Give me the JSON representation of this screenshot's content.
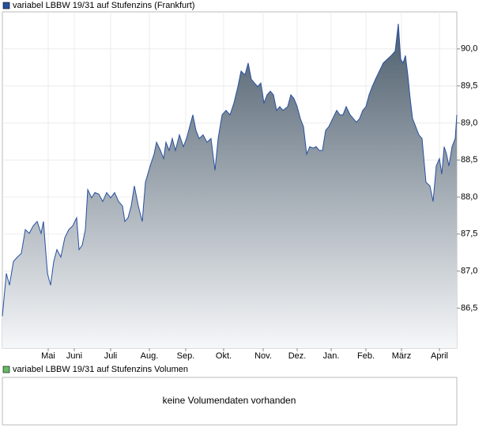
{
  "chart_data": {
    "type": "area",
    "title": "variabel LBBW 19/31 auf Stufenzins (Frankfurt)",
    "color": "#2850a0",
    "x": [
      0,
      5,
      9,
      14,
      19,
      24,
      29,
      34,
      39,
      44,
      49,
      52,
      57,
      61,
      65,
      69,
      74,
      79,
      84,
      89,
      94,
      97,
      101,
      105,
      108,
      113,
      117,
      122,
      127,
      132,
      137,
      142,
      147,
      152,
      155,
      159,
      163,
      167,
      172,
      177,
      181,
      187,
      192,
      195,
      200,
      204,
      207,
      211,
      215,
      219,
      224,
      229,
      233,
      237,
      241,
      245,
      249,
      254,
      259,
      264,
      269,
      273,
      278,
      283,
      288,
      293,
      298,
      302,
      307,
      311,
      315,
      319,
      323,
      327,
      331,
      335,
      339,
      343,
      347,
      351,
      355,
      361,
      365,
      369,
      373,
      377,
      381,
      385,
      389,
      393,
      397,
      401,
      405,
      409,
      413,
      418,
      423,
      427,
      431,
      435,
      440,
      444,
      448,
      452,
      456,
      460,
      464,
      468,
      472,
      477,
      482,
      487,
      492,
      497,
      501,
      504,
      507,
      510,
      513,
      516,
      519,
      523,
      527,
      531,
      536,
      541,
      545,
      549,
      553,
      556,
      559,
      562,
      565,
      569,
      573,
      575
    ],
    "values": [
      86.39,
      86.97,
      86.81,
      87.13,
      87.19,
      87.24,
      87.56,
      87.51,
      87.61,
      87.67,
      87.51,
      87.67,
      86.97,
      86.81,
      87.13,
      87.29,
      87.19,
      87.45,
      87.56,
      87.61,
      87.72,
      87.29,
      87.35,
      87.56,
      88.1,
      87.99,
      88.06,
      88.04,
      87.94,
      88.06,
      87.99,
      88.06,
      87.94,
      87.88,
      87.67,
      87.72,
      87.88,
      88.15,
      87.88,
      87.67,
      88.2,
      88.42,
      88.58,
      88.74,
      88.63,
      88.52,
      88.74,
      88.63,
      88.79,
      88.63,
      88.84,
      88.68,
      88.79,
      88.95,
      89.11,
      88.9,
      88.79,
      88.84,
      88.74,
      88.79,
      88.36,
      88.79,
      89.11,
      89.17,
      89.11,
      89.27,
      89.49,
      89.7,
      89.65,
      89.81,
      89.59,
      89.54,
      89.49,
      89.54,
      89.27,
      89.38,
      89.43,
      89.38,
      89.17,
      89.22,
      89.17,
      89.22,
      89.38,
      89.33,
      89.22,
      89.06,
      88.95,
      88.58,
      88.68,
      88.66,
      88.68,
      88.63,
      88.63,
      88.9,
      88.95,
      89.06,
      89.17,
      89.11,
      89.11,
      89.22,
      89.11,
      89.06,
      89.01,
      89.06,
      89.17,
      89.22,
      89.38,
      89.49,
      89.59,
      89.7,
      89.81,
      89.86,
      89.91,
      89.97,
      90.34,
      89.86,
      89.81,
      89.91,
      89.65,
      89.33,
      89.06,
      88.95,
      88.84,
      88.79,
      88.2,
      88.15,
      87.94,
      88.42,
      88.52,
      88.31,
      88.68,
      88.58,
      88.42,
      88.68,
      88.79,
      89.11
    ],
    "xlim": [
      0,
      575
    ],
    "xticks": [
      {
        "value": 58,
        "label": "Mai"
      },
      {
        "value": 91,
        "label": "Juni"
      },
      {
        "value": 137,
        "label": "Juli"
      },
      {
        "value": 186,
        "label": "Aug."
      },
      {
        "value": 232,
        "label": "Sep."
      },
      {
        "value": 280,
        "label": "Okt."
      },
      {
        "value": 330,
        "label": "Nov."
      },
      {
        "value": 373,
        "label": "Dez."
      },
      {
        "value": 416,
        "label": "Jan."
      },
      {
        "value": 460,
        "label": "Feb."
      },
      {
        "value": 505,
        "label": "März"
      },
      {
        "value": 553,
        "label": "April"
      }
    ],
    "ylim": [
      85.96,
      90.5
    ],
    "yticks": [
      {
        "value": 86.5,
        "label": "86,5"
      },
      {
        "value": 87,
        "label": "87,0"
      },
      {
        "value": 87.5,
        "label": "87,5"
      },
      {
        "value": 88,
        "label": "88,0"
      },
      {
        "value": 88.5,
        "label": "88,5"
      },
      {
        "value": 89,
        "label": "89,0"
      },
      {
        "value": 89.5,
        "label": "89,5"
      },
      {
        "value": 90,
        "label": "90,0"
      }
    ],
    "grid": true,
    "volume": {
      "title": "variabel LBBW 19/31 auf Stufenzins Volumen",
      "color": "#66bb66",
      "message": "keine Volumendaten vorhanden"
    }
  }
}
